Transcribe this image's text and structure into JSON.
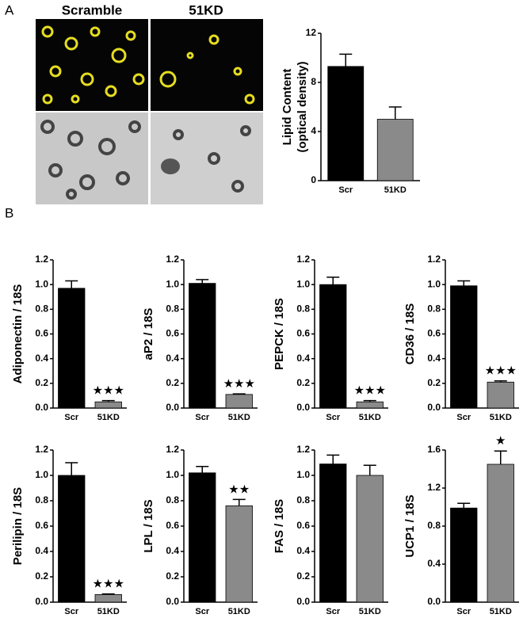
{
  "panel_labels": [
    "A",
    "B"
  ],
  "image_labels": [
    "Scramble",
    "51KD"
  ],
  "chart_data": [
    {
      "type": "bar",
      "ylabel": [
        "Lipid Content",
        "(optical density)"
      ],
      "categories": [
        "Scr",
        "51KD"
      ],
      "values": [
        9.3,
        5.0
      ],
      "errors": [
        1.0,
        1.0
      ],
      "colors": [
        "#000000",
        "#8a8a8a"
      ],
      "ylim": [
        0,
        12
      ],
      "yticks": [
        0,
        4,
        8,
        12
      ]
    },
    {
      "type": "bar",
      "ylabel": "Adiponectin / 18S",
      "categories": [
        "Scr",
        "51KD"
      ],
      "values": [
        0.97,
        0.05
      ],
      "errors": [
        0.06,
        0.01
      ],
      "colors": [
        "#000000",
        "#8a8a8a"
      ],
      "annotations": [
        null,
        "★★★"
      ],
      "ylim": [
        0,
        1.2
      ],
      "yticks": [
        {
          "value": 0,
          "label": "0.0"
        },
        0.2,
        0.4,
        0.6,
        0.8,
        {
          "value": 1,
          "label": "1.0"
        },
        1.2
      ]
    },
    {
      "type": "bar",
      "ylabel": "aP2 / 18S",
      "categories": [
        "Scr",
        "51KD"
      ],
      "values": [
        1.01,
        0.11
      ],
      "errors": [
        0.03,
        0.005
      ],
      "colors": [
        "#000000",
        "#8a8a8a"
      ],
      "annotations": [
        null,
        "★★★"
      ],
      "ylim": [
        0,
        1.2
      ],
      "yticks": [
        {
          "value": 0,
          "label": "0.0"
        },
        0.2,
        0.4,
        0.6,
        0.8,
        {
          "value": 1,
          "label": "1.0"
        },
        1.2
      ]
    },
    {
      "type": "bar",
      "ylabel": "PEPCK / 18S",
      "categories": [
        "Scr",
        "51KD"
      ],
      "values": [
        1.0,
        0.05
      ],
      "errors": [
        0.06,
        0.01
      ],
      "colors": [
        "#000000",
        "#8a8a8a"
      ],
      "annotations": [
        null,
        "★★★"
      ],
      "ylim": [
        0,
        1.2
      ],
      "yticks": [
        {
          "value": 0,
          "label": "0.0"
        },
        0.2,
        0.4,
        0.6,
        0.8,
        {
          "value": 1,
          "label": "1.0"
        },
        1.2
      ]
    },
    {
      "type": "bar",
      "ylabel": "CD36 / 18S",
      "categories": [
        "Scr",
        "51KD"
      ],
      "values": [
        0.99,
        0.21
      ],
      "errors": [
        0.04,
        0.01
      ],
      "colors": [
        "#000000",
        "#8a8a8a"
      ],
      "annotations": [
        null,
        "★★★"
      ],
      "ylim": [
        0,
        1.2
      ],
      "yticks": [
        {
          "value": 0,
          "label": "0.0"
        },
        0.2,
        0.4,
        0.6,
        0.8,
        {
          "value": 1,
          "label": "1.0"
        },
        1.2
      ]
    },
    {
      "type": "bar",
      "ylabel": "Perilipin / 18S",
      "categories": [
        "Scr",
        "51KD"
      ],
      "values": [
        1.0,
        0.06
      ],
      "errors": [
        0.1,
        0.005
      ],
      "colors": [
        "#000000",
        "#8a8a8a"
      ],
      "annotations": [
        null,
        "★★★"
      ],
      "ylim": [
        0,
        1.2
      ],
      "yticks": [
        {
          "value": 0,
          "label": "0.0"
        },
        0.2,
        0.4,
        0.6,
        0.8,
        {
          "value": 1,
          "label": "1.0"
        },
        1.2
      ]
    },
    {
      "type": "bar",
      "ylabel": "LPL / 18S",
      "categories": [
        "Scr",
        "51KD"
      ],
      "values": [
        1.02,
        0.76
      ],
      "errors": [
        0.05,
        0.05
      ],
      "colors": [
        "#000000",
        "#8a8a8a"
      ],
      "annotations": [
        null,
        "★★"
      ],
      "ylim": [
        0,
        1.2
      ],
      "yticks": [
        {
          "value": 0,
          "label": "0.0"
        },
        0.2,
        0.4,
        0.6,
        0.8,
        {
          "value": 1,
          "label": "1.0"
        },
        1.2
      ]
    },
    {
      "type": "bar",
      "ylabel": "FAS / 18S",
      "categories": [
        "Scr",
        "51KD"
      ],
      "values": [
        1.09,
        1.0
      ],
      "errors": [
        0.07,
        0.08
      ],
      "colors": [
        "#000000",
        "#8a8a8a"
      ],
      "ylim": [
        0,
        1.2
      ],
      "yticks": [
        {
          "value": 0,
          "label": "0.0"
        },
        0.2,
        0.4,
        0.6,
        0.8,
        {
          "value": 1,
          "label": "1.0"
        },
        1.2
      ]
    },
    {
      "type": "bar",
      "ylabel": "UCP1 / 18S",
      "categories": [
        "Scr",
        "51KD"
      ],
      "values": [
        0.99,
        1.45
      ],
      "errors": [
        0.05,
        0.14
      ],
      "colors": [
        "#000000",
        "#8a8a8a"
      ],
      "annotations": [
        null,
        "★"
      ],
      "ylim": [
        0,
        1.6
      ],
      "yticks": [
        {
          "value": 0,
          "label": "0.0"
        },
        0.4,
        0.8,
        1.2,
        1.6
      ]
    }
  ]
}
